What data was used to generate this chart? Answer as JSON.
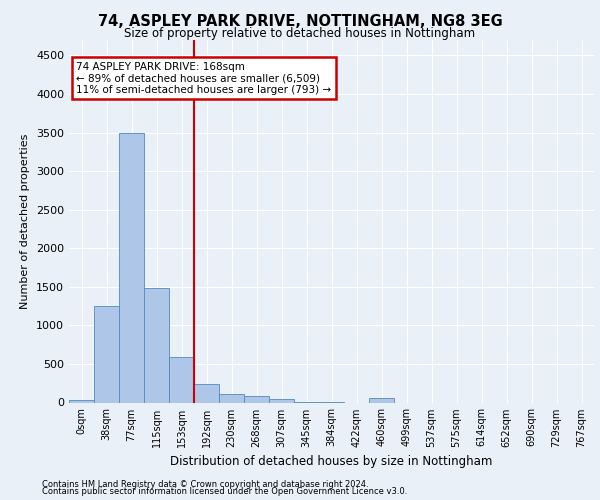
{
  "title": "74, ASPLEY PARK DRIVE, NOTTINGHAM, NG8 3EG",
  "subtitle": "Size of property relative to detached houses in Nottingham",
  "xlabel": "Distribution of detached houses by size in Nottingham",
  "ylabel": "Number of detached properties",
  "bar_categories": [
    "0sqm",
    "38sqm",
    "77sqm",
    "115sqm",
    "153sqm",
    "192sqm",
    "230sqm",
    "268sqm",
    "307sqm",
    "345sqm",
    "384sqm",
    "422sqm",
    "460sqm",
    "499sqm",
    "537sqm",
    "575sqm",
    "614sqm",
    "652sqm",
    "690sqm",
    "729sqm",
    "767sqm"
  ],
  "bar_values": [
    30,
    1250,
    3500,
    1480,
    590,
    240,
    115,
    85,
    40,
    5,
    5,
    0,
    55,
    0,
    0,
    0,
    0,
    0,
    0,
    0,
    0
  ],
  "bar_color": "#aec6e8",
  "bar_edge_color": "#5588bb",
  "property_line_label": "74 ASPLEY PARK DRIVE: 168sqm",
  "annotation_line1": "← 89% of detached houses are smaller (6,509)",
  "annotation_line2": "11% of semi-detached houses are larger (793) →",
  "annotation_box_color": "#ffffff",
  "annotation_box_edge_color": "#cc0000",
  "line_color": "#cc0000",
  "ylim": [
    0,
    4700
  ],
  "yticks": [
    0,
    500,
    1000,
    1500,
    2000,
    2500,
    3000,
    3500,
    4000,
    4500
  ],
  "footer1": "Contains HM Land Registry data © Crown copyright and database right 2024.",
  "footer2": "Contains public sector information licensed under the Open Government Licence v3.0.",
  "bg_color": "#eaf0f8",
  "plot_bg_color": "#eaf0f8",
  "grid_color": "#ffffff"
}
